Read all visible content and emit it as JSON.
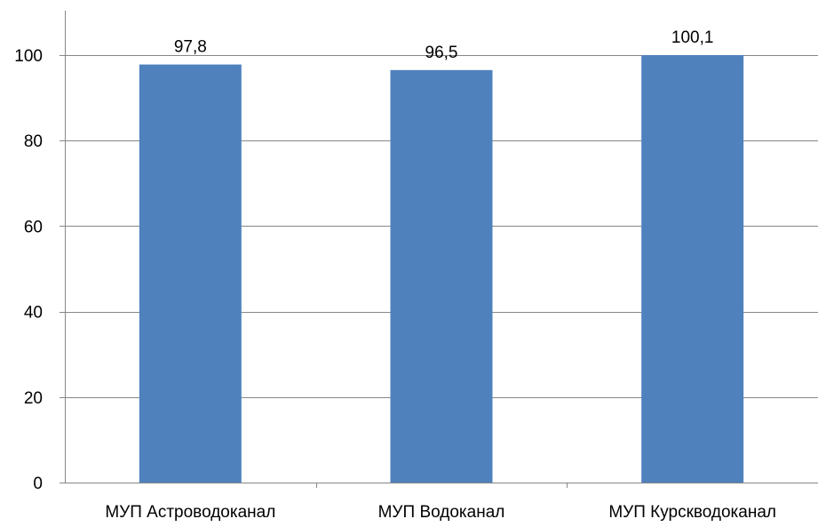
{
  "chart_data": {
    "type": "bar",
    "categories": [
      "МУП Астроводоканал",
      "МУП Водоканал",
      "МУП Курскводоканал"
    ],
    "values": [
      97.8,
      96.5,
      100.1
    ],
    "data_labels": [
      "97,8",
      "96,5",
      "100,1"
    ],
    "title": "",
    "xlabel": "",
    "ylabel": "",
    "ylim": [
      0,
      100
    ],
    "yticks": [
      0,
      20,
      40,
      60,
      80,
      100
    ],
    "ytick_labels": [
      "0",
      "20",
      "40",
      "60",
      "80",
      "100"
    ],
    "grid": true,
    "legend": "none",
    "colors": {
      "bar": "#4F81BD",
      "grid": "#878787",
      "axis": "#878787"
    }
  }
}
